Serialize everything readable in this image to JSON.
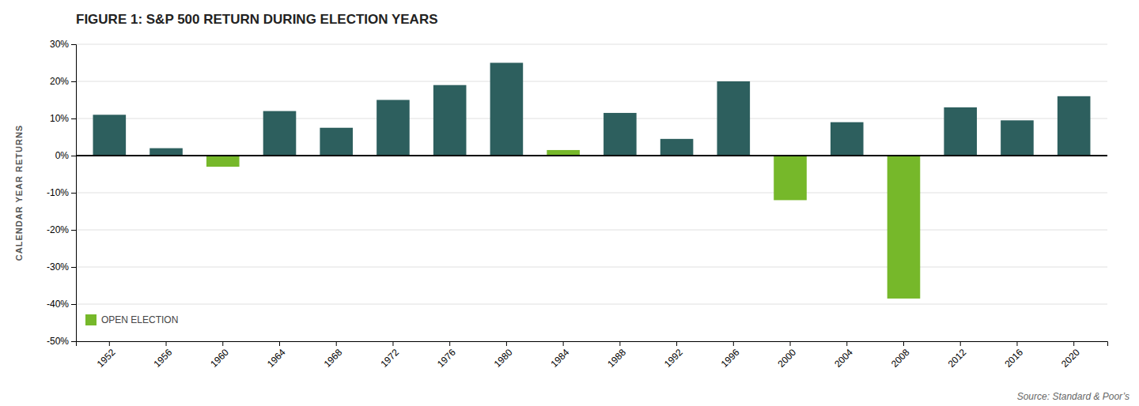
{
  "chart_data": {
    "type": "bar",
    "title": "FIGURE 1: S&P 500 RETURN DURING ELECTION YEARS",
    "y_label": "CALENDAR YEAR RETURNS",
    "annotations": [
      "Source: Standard & Poor’s"
    ],
    "categories": [
      "1952",
      "1956",
      "1960",
      "1964",
      "1968",
      "1972",
      "1976",
      "1980",
      "1984",
      "1988",
      "1992",
      "1996",
      "2000",
      "2004",
      "2008",
      "2012",
      "2016",
      "2020"
    ],
    "series": [
      {
        "color": "#2d5f5e",
        "values": [
          11.0,
          2.0,
          null,
          12.0,
          7.5,
          15.0,
          19.0,
          25.0,
          null,
          11.5,
          4.5,
          20.0,
          null,
          9.0,
          null,
          13.0,
          9.5,
          16.0
        ]
      },
      {
        "name": "OPEN ELECTION",
        "color": "#76b82a",
        "values": [
          null,
          null,
          -3.0,
          null,
          null,
          null,
          null,
          null,
          1.5,
          null,
          null,
          null,
          -12.0,
          null,
          -38.5,
          null,
          null,
          null
        ]
      }
    ],
    "stacked": true,
    "ylim": [
      -50,
      30
    ],
    "yticks": [
      {
        "value": -50,
        "label": "-50%"
      },
      {
        "value": -40,
        "label": "-40%"
      },
      {
        "value": -30,
        "label": "-30%"
      },
      {
        "value": -20,
        "label": "-20%"
      },
      {
        "value": -10,
        "label": "-10%"
      },
      {
        "value": 0,
        "label": "0%"
      },
      {
        "value": 10,
        "label": "10%"
      },
      {
        "value": 20,
        "label": "20%"
      },
      {
        "value": 30,
        "label": "30%"
      }
    ],
    "grid": true,
    "legend": "lower left"
  }
}
